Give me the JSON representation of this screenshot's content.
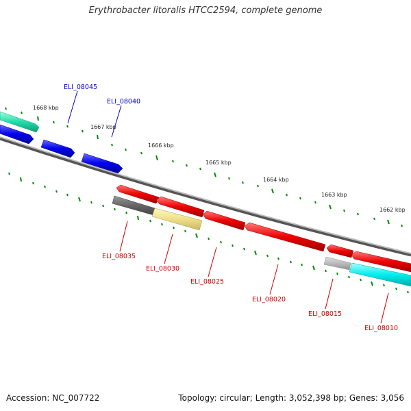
{
  "title": "Erythrobacter litoralis HTCC2594, complete genome",
  "footer": {
    "accession": "Accession: NC_007722",
    "stats": "Topology: circular; Length: 3,052,398 bp; Genes: 3,056"
  },
  "ticks": [
    "1668 kbp",
    "1667 kbp",
    "1666 kbp",
    "1665 kbp",
    "1664 kbp",
    "1663 kbp",
    "1662 kbp"
  ],
  "genes": [
    {
      "id": "ELI_08045",
      "strand": "forward",
      "color": "#0000ee"
    },
    {
      "id": "ELI_08040",
      "strand": "forward",
      "color": "#0000ee"
    },
    {
      "id": "ELI_08035",
      "strand": "reverse",
      "color": "#ee0000"
    },
    {
      "id": "ELI_08030",
      "strand": "reverse",
      "color": "#ee0000"
    },
    {
      "id": "ELI_08025",
      "strand": "reverse",
      "color": "#ee0000"
    },
    {
      "id": "ELI_08020",
      "strand": "reverse",
      "color": "#ee0000"
    },
    {
      "id": "ELI_08015",
      "strand": "reverse",
      "color": "#ee0000"
    },
    {
      "id": "ELI_08010",
      "strand": "reverse",
      "color": "#ee0000"
    }
  ],
  "colors": {
    "backbone": "#888888",
    "forward_gene": "#0000ee",
    "reverse_gene": "#ee0000",
    "tick": "#008800",
    "teal_feature": "#22ddaa",
    "grey_feature": "#666666",
    "khaki_feature": "#eee08a",
    "lightgrey_feature": "#bbbbbb",
    "cyan_feature": "#00eeee"
  }
}
